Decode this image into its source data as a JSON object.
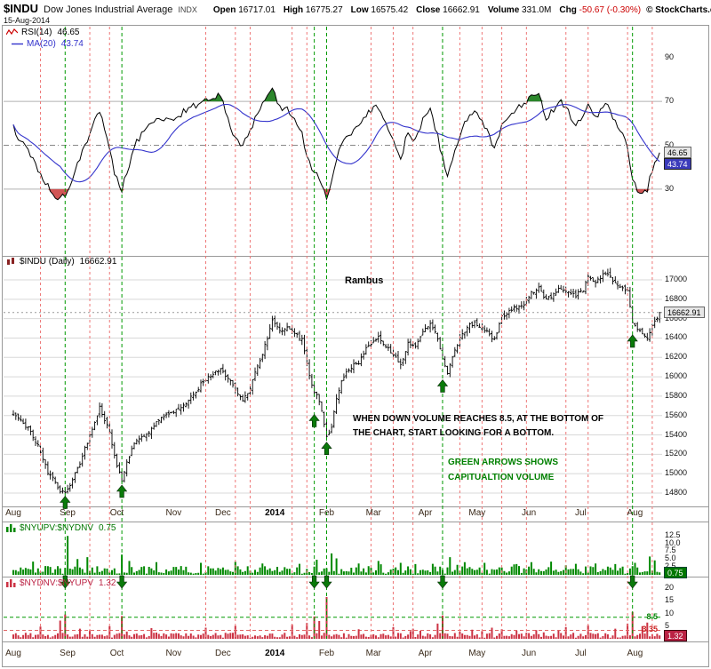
{
  "header": {
    "symbol": "$INDU",
    "name": "Dow Jones Industrial Average",
    "exchange": "INDX",
    "date": "15-Aug-2014",
    "fields": [
      {
        "label": "Open",
        "value": "16717.01"
      },
      {
        "label": "High",
        "value": "16775.27"
      },
      {
        "label": "Low",
        "value": "16575.42"
      },
      {
        "label": "Close",
        "value": "16662.91"
      },
      {
        "label": "Volume",
        "value": "331.0M"
      },
      {
        "label": "Chg",
        "value": "-50.67 (-0.30%)",
        "negative": true
      }
    ],
    "credit": "© StockCharts.com"
  },
  "colors": {
    "green_bars": "#008800",
    "red_bars": "#cc3344",
    "ma_blue": "#3333cc",
    "rsi_line": "#000000",
    "price_bars": "#000000",
    "event_green": "#009900",
    "event_red": "#ee7777",
    "arrow_green": "#0a7a0a",
    "annotation_green": "#008000",
    "negative_red": "#cc0000",
    "overbought_fill": "#157a15",
    "oversold_fill": "#cc4444"
  },
  "timeline": {
    "total_days": 263,
    "months": [
      {
        "label": "Aug",
        "day": 0
      },
      {
        "label": "Sep",
        "day": 22
      },
      {
        "label": "Oct",
        "day": 42
      },
      {
        "label": "Nov",
        "day": 65
      },
      {
        "label": "Dec",
        "day": 85
      },
      {
        "label": "2014",
        "day": 106,
        "bold": true
      },
      {
        "label": "Feb",
        "day": 127
      },
      {
        "label": "Mar",
        "day": 146
      },
      {
        "label": "Apr",
        "day": 167
      },
      {
        "label": "May",
        "day": 188
      },
      {
        "label": "Jun",
        "day": 209
      },
      {
        "label": "Jul",
        "day": 230
      },
      {
        "label": "Aug",
        "day": 252
      }
    ]
  },
  "events": {
    "green_days": [
      21,
      44,
      122,
      127,
      174,
      251
    ],
    "red_days": [
      11,
      31,
      39,
      78,
      90,
      96,
      113,
      119,
      145,
      154,
      162,
      181,
      190,
      198,
      208,
      224,
      233,
      249,
      259
    ]
  },
  "annotations": {
    "author": "Rambus",
    "note_line1": "WHEN DOWN VOLUME REACHES 8.5, AT THE BOTTOM OF",
    "note_line2": "THE CHART, START LOOKING FOR A BOTTOM.",
    "green_line1": "GREEN ARROWS SHOWS",
    "green_line2": "CAPITUALTION VOLUME"
  },
  "chart_data": [
    {
      "id": "rsi",
      "type": "line",
      "title": "RSI(14)",
      "value_text": "46.65",
      "value": 46.65,
      "ma": {
        "title": "MA(20)",
        "value_text": "43.74",
        "value": 43.74,
        "period": 20
      },
      "ylim": [
        0,
        100
      ],
      "yticks": [
        90,
        70,
        50,
        30
      ],
      "hlines": [
        {
          "v": 70,
          "style": "solid"
        },
        {
          "v": 50,
          "style": "dashdot"
        },
        {
          "v": 30,
          "style": "solid"
        }
      ],
      "anchors": [
        [
          0,
          58
        ],
        [
          4,
          50
        ],
        [
          8,
          44
        ],
        [
          12,
          34
        ],
        [
          16,
          28
        ],
        [
          19,
          26
        ],
        [
          21,
          27
        ],
        [
          24,
          35
        ],
        [
          28,
          47
        ],
        [
          32,
          58
        ],
        [
          35,
          66
        ],
        [
          37,
          58
        ],
        [
          39,
          48
        ],
        [
          41,
          38
        ],
        [
          44,
          30
        ],
        [
          46,
          38
        ],
        [
          50,
          52
        ],
        [
          54,
          58
        ],
        [
          58,
          62
        ],
        [
          62,
          61
        ],
        [
          66,
          63
        ],
        [
          70,
          66
        ],
        [
          74,
          68
        ],
        [
          78,
          70
        ],
        [
          82,
          72
        ],
        [
          84,
          73
        ],
        [
          87,
          62
        ],
        [
          90,
          53
        ],
        [
          93,
          50
        ],
        [
          96,
          57
        ],
        [
          100,
          66
        ],
        [
          103,
          72
        ],
        [
          105,
          75
        ],
        [
          108,
          68
        ],
        [
          111,
          66
        ],
        [
          114,
          62
        ],
        [
          117,
          55
        ],
        [
          119,
          46
        ],
        [
          121,
          40
        ],
        [
          124,
          35
        ],
        [
          127,
          26
        ],
        [
          129,
          33
        ],
        [
          131,
          44
        ],
        [
          134,
          52
        ],
        [
          137,
          56
        ],
        [
          140,
          60
        ],
        [
          143,
          64
        ],
        [
          145,
          66
        ],
        [
          148,
          68
        ],
        [
          151,
          60
        ],
        [
          154,
          52
        ],
        [
          157,
          44
        ],
        [
          160,
          56
        ],
        [
          163,
          52
        ],
        [
          166,
          62
        ],
        [
          169,
          66
        ],
        [
          172,
          54
        ],
        [
          174,
          44
        ],
        [
          176,
          37
        ],
        [
          179,
          48
        ],
        [
          182,
          58
        ],
        [
          185,
          63
        ],
        [
          187,
          65
        ],
        [
          190,
          61
        ],
        [
          193,
          54
        ],
        [
          195,
          49
        ],
        [
          198,
          59
        ],
        [
          201,
          64
        ],
        [
          204,
          67
        ],
        [
          207,
          69
        ],
        [
          210,
          72
        ],
        [
          213,
          75
        ],
        [
          216,
          62
        ],
        [
          219,
          66
        ],
        [
          222,
          70
        ],
        [
          225,
          65
        ],
        [
          228,
          60
        ],
        [
          231,
          64
        ],
        [
          233,
          70
        ],
        [
          236,
          62
        ],
        [
          239,
          68
        ],
        [
          241,
          70
        ],
        [
          243,
          63
        ],
        [
          246,
          56
        ],
        [
          249,
          50
        ],
        [
          251,
          34
        ],
        [
          253,
          30
        ],
        [
          255,
          27
        ],
        [
          257,
          30
        ],
        [
          259,
          39
        ],
        [
          261,
          44
        ],
        [
          262,
          46.65
        ]
      ]
    },
    {
      "id": "price",
      "type": "ohlc-bar",
      "title": "$INDU (Daily)",
      "last_text": "16662.91",
      "last": 16662.91,
      "ylim": [
        14800,
        17050
      ],
      "yticks": [
        17000,
        16800,
        16600,
        16400,
        16200,
        16000,
        15800,
        15600,
        15400,
        15200,
        15000,
        14800
      ],
      "close_anchors": [
        [
          0,
          15620
        ],
        [
          3,
          15550
        ],
        [
          6,
          15470
        ],
        [
          10,
          15300
        ],
        [
          14,
          15010
        ],
        [
          17,
          14920
        ],
        [
          19,
          14820
        ],
        [
          21,
          14810
        ],
        [
          24,
          14940
        ],
        [
          27,
          15100
        ],
        [
          30,
          15330
        ],
        [
          33,
          15540
        ],
        [
          35,
          15690
        ],
        [
          37,
          15560
        ],
        [
          39,
          15420
        ],
        [
          41,
          15180
        ],
        [
          44,
          14935
        ],
        [
          46,
          15130
        ],
        [
          49,
          15300
        ],
        [
          52,
          15390
        ],
        [
          55,
          15420
        ],
        [
          58,
          15550
        ],
        [
          61,
          15590
        ],
        [
          64,
          15620
        ],
        [
          68,
          15700
        ],
        [
          72,
          15780
        ],
        [
          76,
          15920
        ],
        [
          80,
          16020
        ],
        [
          84,
          16090
        ],
        [
          87,
          15990
        ],
        [
          90,
          15860
        ],
        [
          93,
          15760
        ],
        [
          96,
          15890
        ],
        [
          99,
          16100
        ],
        [
          102,
          16320
        ],
        [
          105,
          16570
        ],
        [
          108,
          16470
        ],
        [
          111,
          16500
        ],
        [
          114,
          16460
        ],
        [
          117,
          16380
        ],
        [
          119,
          16150
        ],
        [
          121,
          15900
        ],
        [
          124,
          15760
        ],
        [
          127,
          15380
        ],
        [
          129,
          15480
        ],
        [
          131,
          15790
        ],
        [
          134,
          16010
        ],
        [
          137,
          16100
        ],
        [
          140,
          16150
        ],
        [
          143,
          16300
        ],
        [
          145,
          16350
        ],
        [
          148,
          16420
        ],
        [
          151,
          16320
        ],
        [
          154,
          16230
        ],
        [
          157,
          16110
        ],
        [
          160,
          16350
        ],
        [
          163,
          16300
        ],
        [
          166,
          16460
        ],
        [
          169,
          16550
        ],
        [
          172,
          16400
        ],
        [
          174,
          16170
        ],
        [
          176,
          16040
        ],
        [
          179,
          16270
        ],
        [
          182,
          16450
        ],
        [
          185,
          16530
        ],
        [
          187,
          16560
        ],
        [
          190,
          16510
        ],
        [
          193,
          16440
        ],
        [
          195,
          16380
        ],
        [
          198,
          16620
        ],
        [
          201,
          16680
        ],
        [
          204,
          16720
        ],
        [
          207,
          16740
        ],
        [
          210,
          16860
        ],
        [
          213,
          16940
        ],
        [
          216,
          16790
        ],
        [
          219,
          16850
        ],
        [
          222,
          16920
        ],
        [
          225,
          16880
        ],
        [
          228,
          16840
        ],
        [
          231,
          16900
        ],
        [
          233,
          17030
        ],
        [
          236,
          16970
        ],
        [
          239,
          17060
        ],
        [
          241,
          17080
        ],
        [
          243,
          17000
        ],
        [
          246,
          16930
        ],
        [
          249,
          16880
        ],
        [
          251,
          16570
        ],
        [
          253,
          16500
        ],
        [
          255,
          16440
        ],
        [
          257,
          16380
        ],
        [
          259,
          16530
        ],
        [
          261,
          16620
        ],
        [
          262,
          16663
        ]
      ]
    },
    {
      "id": "nyupv_nydnv",
      "type": "bar",
      "title": "$NYUPV:$NYDNV",
      "last_text": "0.75",
      "last": 0.75,
      "ylim": [
        0,
        13
      ],
      "yticks": [
        12.5,
        10.0,
        7.5,
        5.0,
        2.5
      ],
      "ytick_labels": [
        "12.5",
        "10.0",
        "7.5",
        "5.0",
        "2.5"
      ],
      "baseline_range": [
        0.3,
        2.8
      ],
      "spikes": [
        [
          8,
          4.2
        ],
        [
          22,
          12.3
        ],
        [
          26,
          5.0
        ],
        [
          30,
          5.6
        ],
        [
          44,
          6.4
        ],
        [
          47,
          4.4
        ],
        [
          58,
          4.0
        ],
        [
          76,
          3.8
        ],
        [
          90,
          4.2
        ],
        [
          101,
          3.6
        ],
        [
          116,
          3.5
        ],
        [
          123,
          4.8
        ],
        [
          129,
          6.8
        ],
        [
          131,
          5.2
        ],
        [
          140,
          3.6
        ],
        [
          148,
          4.4
        ],
        [
          157,
          3.8
        ],
        [
          163,
          3.4
        ],
        [
          170,
          3.5
        ],
        [
          177,
          5.6
        ],
        [
          183,
          4.0
        ],
        [
          191,
          3.8
        ],
        [
          204,
          3.4
        ],
        [
          210,
          4.0
        ],
        [
          218,
          4.2
        ],
        [
          228,
          3.5
        ],
        [
          236,
          3.6
        ],
        [
          244,
          3.4
        ],
        [
          252,
          3.8
        ],
        [
          258,
          5.8
        ],
        [
          260,
          4.6
        ]
      ]
    },
    {
      "id": "nydnv_nyupv",
      "type": "bar",
      "title": "$NYDNV:$NYUPV",
      "last_text": "1.32",
      "last": 1.32,
      "ylim": [
        0,
        20
      ],
      "yticks": [
        20,
        15,
        10,
        5
      ],
      "ytick_labels": [
        "20",
        "15",
        "10",
        "5"
      ],
      "levels": [
        {
          "v": 8.5,
          "color": "green",
          "label": "8.5"
        },
        {
          "v": 3.35,
          "color": "red",
          "label": "3.35"
        }
      ],
      "baseline_range": [
        0.4,
        2.4
      ],
      "spikes": [
        [
          11,
          4.8
        ],
        [
          19,
          7.2
        ],
        [
          21,
          9.6
        ],
        [
          27,
          4.0
        ],
        [
          39,
          5.0
        ],
        [
          44,
          9.0
        ],
        [
          56,
          4.2
        ],
        [
          78,
          4.4
        ],
        [
          90,
          5.2
        ],
        [
          113,
          5.6
        ],
        [
          119,
          6.2
        ],
        [
          122,
          8.8
        ],
        [
          124,
          7.0
        ],
        [
          127,
          16.5
        ],
        [
          140,
          3.8
        ],
        [
          154,
          4.6
        ],
        [
          162,
          4.0
        ],
        [
          172,
          6.0
        ],
        [
          174,
          9.2
        ],
        [
          186,
          3.6
        ],
        [
          194,
          4.4
        ],
        [
          198,
          3.8
        ],
        [
          212,
          3.4
        ],
        [
          224,
          4.6
        ],
        [
          233,
          5.4
        ],
        [
          244,
          4.0
        ],
        [
          249,
          6.0
        ],
        [
          251,
          10.6
        ],
        [
          255,
          5.0
        ],
        [
          257,
          6.4
        ]
      ]
    }
  ]
}
